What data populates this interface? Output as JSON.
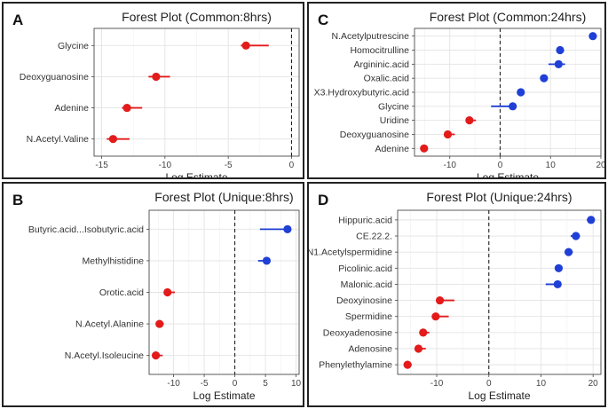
{
  "colors": {
    "positive": "#1f3fd6",
    "negative": "#e31b1b"
  },
  "chart_data": [
    {
      "id": "a",
      "panel_label": "A",
      "type": "forest",
      "title": "Forest Plot (Common:8hrs)",
      "xlabel": "Log Estimate",
      "xlim": [
        -15.6,
        0.6
      ],
      "xticks": [
        -15,
        -10,
        -5,
        0
      ],
      "categories": [
        "Glycine",
        "Deoxyguanosine",
        "Adenine",
        "N.Acetyl.Valine"
      ],
      "estimates": [
        -3.6,
        -10.7,
        -13.0,
        -14.1
      ],
      "ci_low": [
        -4.0,
        -11.3,
        -13.4,
        -14.6
      ],
      "ci_high": [
        -1.8,
        -9.6,
        -11.8,
        -12.8
      ]
    },
    {
      "id": "c",
      "panel_label": "C",
      "type": "forest",
      "title": "Forest Plot (Common:24hrs)",
      "xlabel": "Log Estimate",
      "xlim": [
        -17,
        20
      ],
      "xticks": [
        -10,
        0,
        10,
        20
      ],
      "categories": [
        "N.Acetylputrescine",
        "Homocitrulline",
        "Argininic.acid",
        "Oxalic.acid",
        "X3.Hydroxybutyric.acid",
        "Glycine",
        "Uridine",
        "Deoxyguanosine",
        "Adenine"
      ],
      "estimates": [
        18.4,
        11.9,
        11.6,
        8.7,
        4.1,
        2.5,
        -6.1,
        -10.4,
        -15.1
      ],
      "ci_low": [
        17.9,
        11.2,
        9.6,
        8.2,
        3.4,
        -1.8,
        -6.6,
        -11.0,
        -15.6
      ],
      "ci_high": [
        18.9,
        12.5,
        12.9,
        9.3,
        4.8,
        3.2,
        -4.8,
        -9.0,
        -14.5
      ]
    },
    {
      "id": "b",
      "panel_label": "B",
      "type": "forest",
      "title": "Forest Plot (Unique:8hrs)",
      "xlabel": "Log Estimate",
      "xlim": [
        -14,
        10.5
      ],
      "xticks": [
        -10,
        -5,
        0,
        5,
        10
      ],
      "categories": [
        "Butyric.acid...Isobutyric.acid",
        "Methylhistidine",
        "Orotic.acid",
        "N.Acetyl.Alanine",
        "N.Acetyl.Isoleucine"
      ],
      "estimates": [
        8.6,
        5.2,
        -11.0,
        -12.3,
        -12.9
      ],
      "ci_low": [
        4.1,
        3.8,
        -11.4,
        -12.7,
        -13.3
      ],
      "ci_high": [
        9.2,
        5.7,
        -9.8,
        -11.6,
        -11.8
      ]
    },
    {
      "id": "d",
      "panel_label": "D",
      "type": "forest",
      "title": "Forest Plot (Unique:24hrs)",
      "xlabel": "Log Estimate",
      "xlim": [
        -17.5,
        21.5
      ],
      "xticks": [
        -10,
        0,
        10,
        20
      ],
      "categories": [
        "Hippuric.acid",
        "CE.22.2.",
        "N1.Acetylspermidine",
        "Picolinic.acid",
        "Malonic.acid",
        "Deoxyinosine",
        "Spermidine",
        "Deoxyadenosine",
        "Adenosine",
        "Phenylethylamine"
      ],
      "estimates": [
        19.6,
        16.7,
        15.3,
        13.4,
        13.2,
        -9.4,
        -10.2,
        -12.6,
        -13.5,
        -15.6
      ],
      "ci_low": [
        18.8,
        15.7,
        14.6,
        12.7,
        10.9,
        -10.0,
        -10.8,
        -13.3,
        -14.2,
        -16.3
      ],
      "ci_high": [
        20.3,
        17.5,
        16.1,
        14.0,
        13.8,
        -6.6,
        -7.7,
        -11.4,
        -12.1,
        -14.8
      ]
    }
  ]
}
